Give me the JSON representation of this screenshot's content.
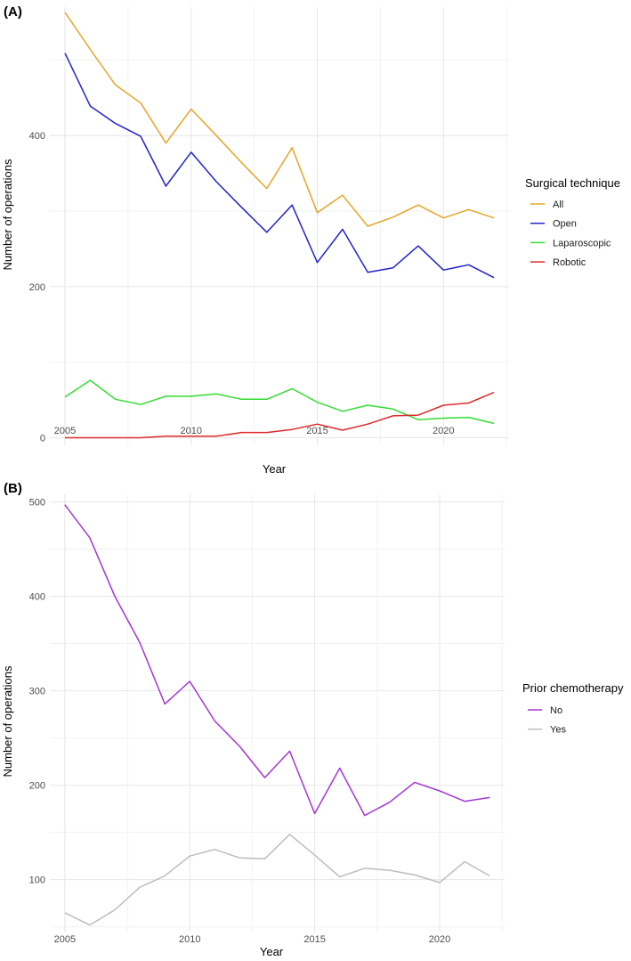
{
  "chart_data": [
    {
      "type": "line",
      "panel_label": "(A)",
      "xlabel": "Year",
      "ylabel": "Number of operations",
      "xlim": [
        2004.4,
        2022.6
      ],
      "ylim": [
        -10,
        570
      ],
      "x_ticks": [
        2005,
        2010,
        2015,
        2020
      ],
      "x_minor_ticks": [
        2007.5,
        2012.5,
        2017.5,
        2022.5
      ],
      "y_ticks": [
        0,
        200,
        400
      ],
      "y_minor_ticks": [
        100,
        300,
        500
      ],
      "grid": true,
      "legend_title": "Surgical technique",
      "legend_position": "right",
      "x": [
        2005,
        2006,
        2007,
        2008,
        2009,
        2010,
        2011,
        2012,
        2013,
        2014,
        2015,
        2016,
        2017,
        2018,
        2019,
        2020,
        2021,
        2022
      ],
      "series": [
        {
          "name": "All",
          "color": "#E6A526",
          "values": [
            563,
            514,
            467,
            443,
            390,
            435,
            400,
            364,
            330,
            384,
            298,
            321,
            280,
            292,
            308,
            291,
            302,
            291
          ]
        },
        {
          "name": "Open",
          "color": "#2222CC",
          "values": [
            509,
            439,
            416,
            399,
            333,
            378,
            339,
            305,
            272,
            308,
            232,
            276,
            219,
            225,
            254,
            222,
            229,
            212
          ]
        },
        {
          "name": "Laparoscopic",
          "color": "#33DD33",
          "values": [
            54,
            76,
            51,
            44,
            55,
            55,
            58,
            51,
            51,
            65,
            47,
            35,
            43,
            38,
            24,
            26,
            27,
            19
          ]
        },
        {
          "name": "Robotic",
          "color": "#DD2B2B",
          "values": [
            0,
            0,
            0,
            0,
            2,
            2,
            2,
            7,
            7,
            11,
            18,
            10,
            18,
            29,
            30,
            43,
            46,
            60
          ]
        }
      ]
    },
    {
      "type": "line",
      "panel_label": "(B)",
      "xlabel": "Year",
      "ylabel": "Number of operations",
      "xlim": [
        2004.4,
        2022.6
      ],
      "ylim": [
        45,
        508
      ],
      "x_ticks": [
        2005,
        2010,
        2015,
        2020
      ],
      "x_minor_ticks": [
        2007.5,
        2012.5,
        2017.5,
        2022.5
      ],
      "y_ticks": [
        100,
        200,
        300,
        400,
        500
      ],
      "y_minor_ticks": [
        50,
        150,
        250,
        350,
        450
      ],
      "grid": true,
      "legend_title": "Prior chemotherapy",
      "legend_position": "right",
      "x": [
        2005,
        2006,
        2007,
        2008,
        2009,
        2010,
        2011,
        2012,
        2013,
        2014,
        2015,
        2016,
        2017,
        2018,
        2019,
        2020,
        2021,
        2022
      ],
      "series": [
        {
          "name": "No",
          "color": "#A335D6",
          "values": [
            497,
            462,
            400,
            351,
            286,
            310,
            268,
            241,
            208,
            236,
            170,
            218,
            168,
            182,
            203,
            194,
            183,
            187
          ]
        },
        {
          "name": "Yes",
          "color": "#BDBDBD",
          "values": [
            65,
            52,
            68,
            92,
            104,
            125,
            132,
            123,
            122,
            148,
            126,
            103,
            112,
            110,
            105,
            97,
            119,
            104
          ]
        }
      ]
    }
  ]
}
